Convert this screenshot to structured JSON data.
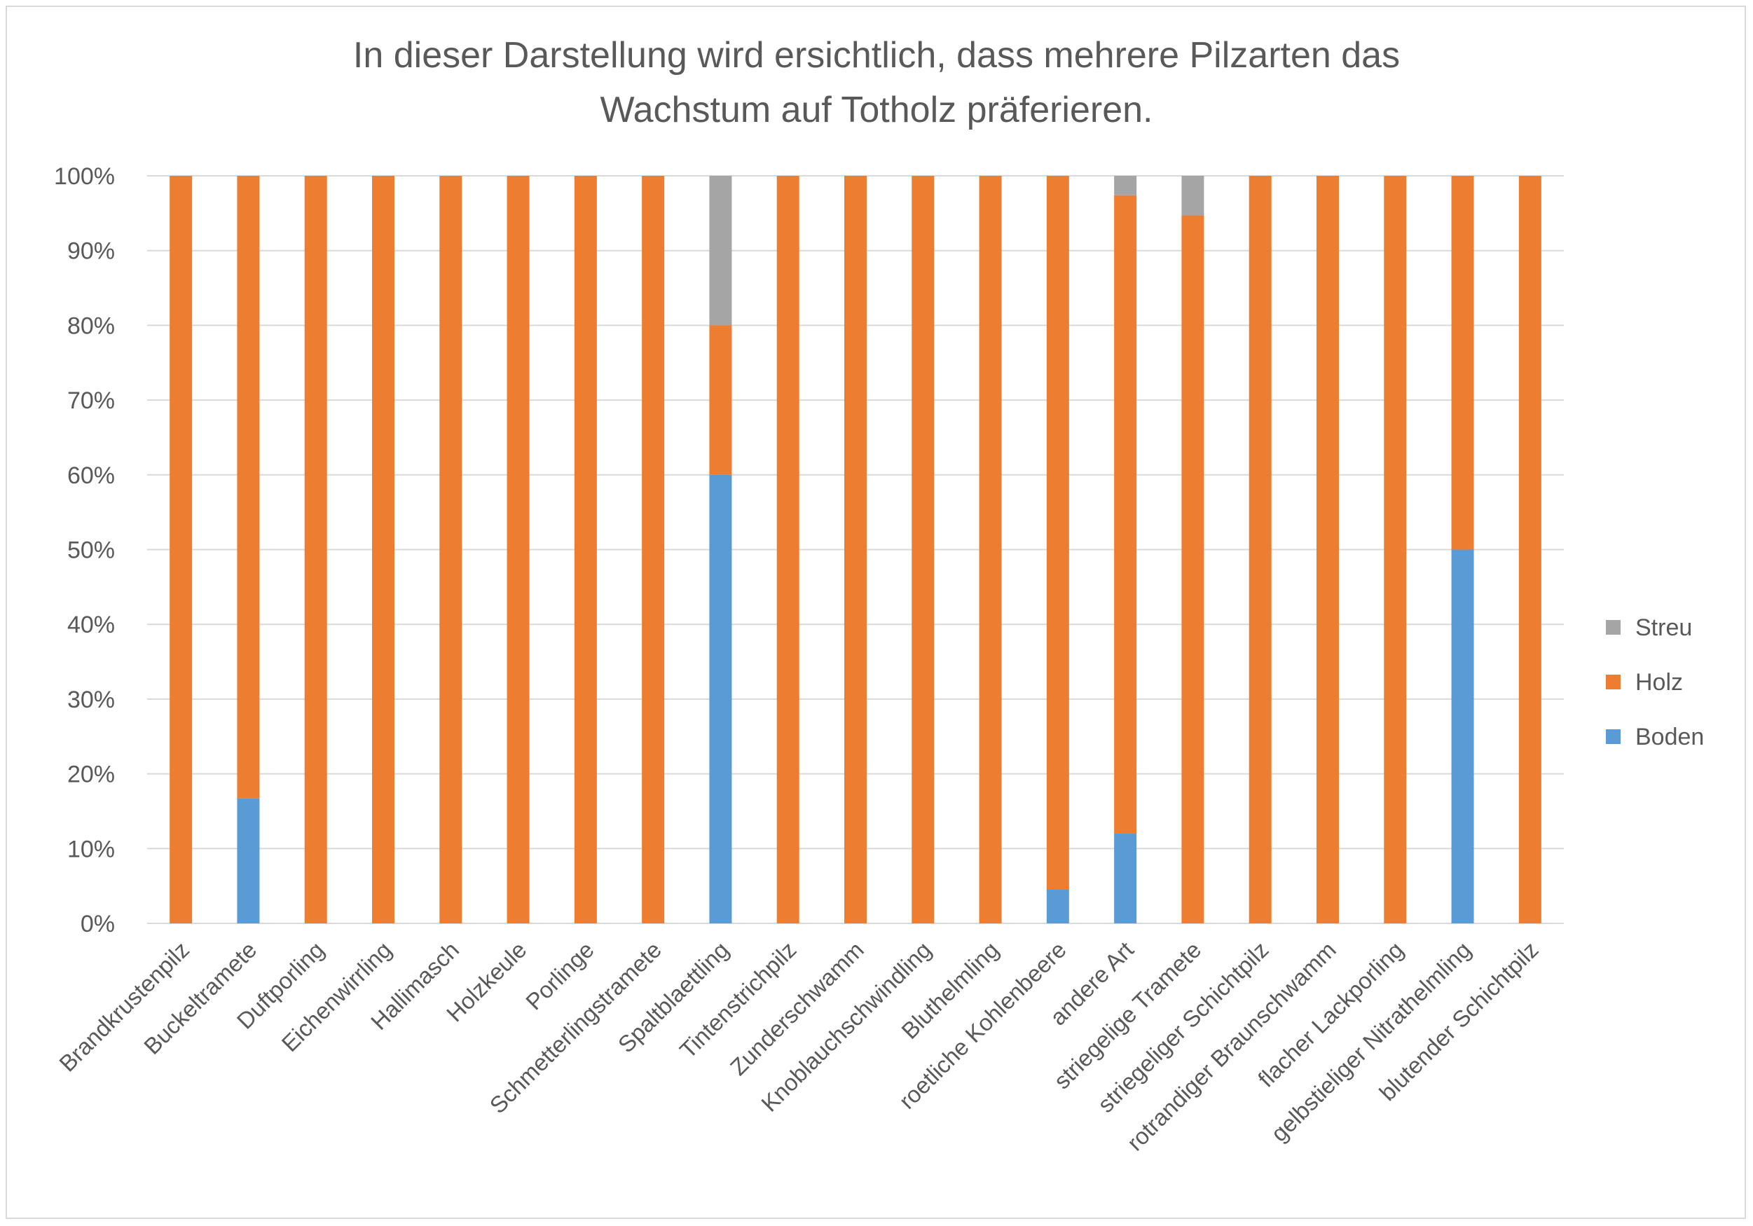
{
  "chart_data": {
    "type": "bar",
    "stacked": true,
    "percent": true,
    "title": "In dieser Darstellung wird ersichtlich, dass mehrere Pilzarten das Wachstum auf Totholz präferieren.",
    "title_lines": [
      "In dieser Darstellung wird ersichtlich, dass mehrere Pilzarten das",
      "Wachstum auf Totholz präferieren."
    ],
    "ylim": [
      0,
      100
    ],
    "yticks": [
      "0%",
      "10%",
      "20%",
      "30%",
      "40%",
      "50%",
      "60%",
      "70%",
      "80%",
      "90%",
      "100%"
    ],
    "grid": true,
    "legend_position": "right",
    "categories": [
      "Brandkrustenpilz",
      "Buckeltramete",
      "Duftporling",
      "Eichenwirrling",
      "Hallimasch",
      "Holzkeule",
      "Porlinge",
      "Schmetterlingstramete",
      "Spaltblaettling",
      "Tintenstrichpilz",
      "Zunderschwamm",
      "Knoblauchschwindling",
      "Bluthelmling",
      "roetliche Kohlenbeere",
      "andere Art",
      "striegelige Tramete",
      "striegeliger Schichtpilz",
      "rotrandiger Braunschwamm",
      "flacher Lackporling",
      "gelbstieliger Nitrathelmling",
      "blutender Schichtpilz"
    ],
    "series": [
      {
        "name": "Boden",
        "color": "#5b9bd5",
        "values": [
          0,
          16.7,
          0,
          0,
          0,
          0,
          0,
          0,
          60,
          0,
          0,
          0,
          0,
          4.5,
          12,
          0,
          0,
          0,
          0,
          50,
          0
        ]
      },
      {
        "name": "Holz",
        "color": "#ed7d31",
        "values": [
          100,
          83.3,
          100,
          100,
          100,
          100,
          100,
          100,
          20,
          100,
          100,
          100,
          100,
          95.5,
          85.4,
          94.7,
          100,
          100,
          100,
          50,
          100
        ]
      },
      {
        "name": "Streu",
        "color": "#a5a5a5",
        "values": [
          0,
          0,
          0,
          0,
          0,
          0,
          0,
          0,
          20,
          0,
          0,
          0,
          0,
          0,
          2.6,
          5.3,
          0,
          0,
          0,
          0,
          0
        ]
      }
    ],
    "legend_order": [
      "Streu",
      "Holz",
      "Boden"
    ]
  }
}
